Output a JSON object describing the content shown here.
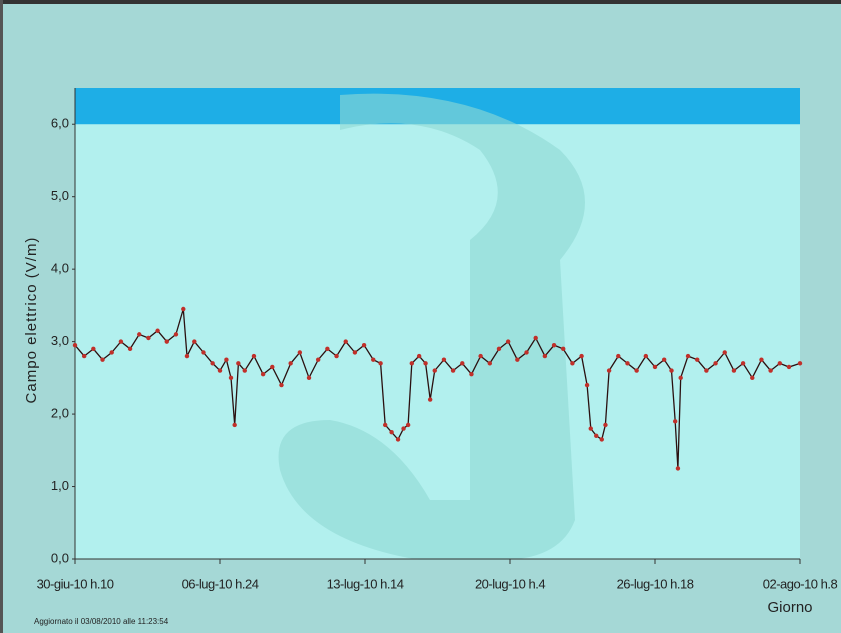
{
  "chart_data": {
    "type": "line",
    "y_label": "Campo elettrico (V/m)",
    "x_label": "Giorno",
    "footer": "Aggiornato il 03/08/2010 alle 11:23:54",
    "ylim": [
      0,
      6.5
    ],
    "yticks": [
      {
        "value": 0,
        "label": "0,0"
      },
      {
        "value": 1,
        "label": "1,0"
      },
      {
        "value": 2,
        "label": "2,0"
      },
      {
        "value": 3,
        "label": "3,0"
      },
      {
        "value": 4,
        "label": "4,0"
      },
      {
        "value": 5,
        "label": "5,0"
      },
      {
        "value": 6,
        "label": "6,0"
      }
    ],
    "xlim": [
      0,
      790
    ],
    "xticks": [
      {
        "value": 0,
        "label": "30-giu-10 h.10"
      },
      {
        "value": 158,
        "label": "06-lug-10 h.24"
      },
      {
        "value": 316,
        "label": "13-lug-10 h.14"
      },
      {
        "value": 474,
        "label": "20-lug-10 h.4"
      },
      {
        "value": 632,
        "label": "26-lug-10 h.18"
      },
      {
        "value": 790,
        "label": "02-ago-10 h.8"
      }
    ],
    "band": {
      "from": 6,
      "to": 6.5,
      "color": "#1eaee6"
    },
    "series": [
      {
        "color": "#2a1010",
        "marker_color": "#c0302a",
        "x": [
          0,
          10,
          20,
          30,
          40,
          50,
          60,
          70,
          80,
          90,
          100,
          110,
          118,
          122,
          130,
          140,
          150,
          158,
          165,
          170,
          174,
          178,
          185,
          195,
          205,
          215,
          225,
          235,
          245,
          255,
          265,
          275,
          285,
          295,
          305,
          315,
          325,
          333,
          338,
          345,
          352,
          358,
          363,
          367,
          375,
          382,
          387,
          392,
          402,
          412,
          422,
          432,
          442,
          452,
          462,
          472,
          482,
          492,
          502,
          512,
          522,
          532,
          542,
          552,
          558,
          562,
          568,
          574,
          578,
          582,
          592,
          602,
          612,
          622,
          632,
          642,
          650,
          654,
          657,
          660,
          668,
          678,
          688,
          698,
          708,
          718,
          728,
          738,
          748,
          758,
          768,
          778,
          790
        ],
        "values": [
          2.95,
          2.8,
          2.9,
          2.75,
          2.85,
          3.0,
          2.9,
          3.1,
          3.05,
          3.15,
          3.0,
          3.1,
          3.45,
          2.8,
          3.0,
          2.85,
          2.7,
          2.6,
          2.75,
          2.5,
          1.85,
          2.7,
          2.6,
          2.8,
          2.55,
          2.65,
          2.4,
          2.7,
          2.85,
          2.5,
          2.75,
          2.9,
          2.8,
          3.0,
          2.85,
          2.95,
          2.75,
          2.7,
          1.85,
          1.75,
          1.65,
          1.8,
          1.85,
          2.7,
          2.8,
          2.7,
          2.2,
          2.6,
          2.75,
          2.6,
          2.7,
          2.55,
          2.8,
          2.7,
          2.9,
          3.0,
          2.75,
          2.85,
          3.05,
          2.8,
          2.95,
          2.9,
          2.7,
          2.8,
          2.4,
          1.8,
          1.7,
          1.65,
          1.85,
          2.6,
          2.8,
          2.7,
          2.6,
          2.8,
          2.65,
          2.75,
          2.6,
          1.9,
          1.25,
          2.5,
          2.8,
          2.75,
          2.6,
          2.7,
          2.85,
          2.6,
          2.7,
          2.5,
          2.75,
          2.6,
          2.7,
          2.65,
          2.7
        ]
      }
    ]
  }
}
